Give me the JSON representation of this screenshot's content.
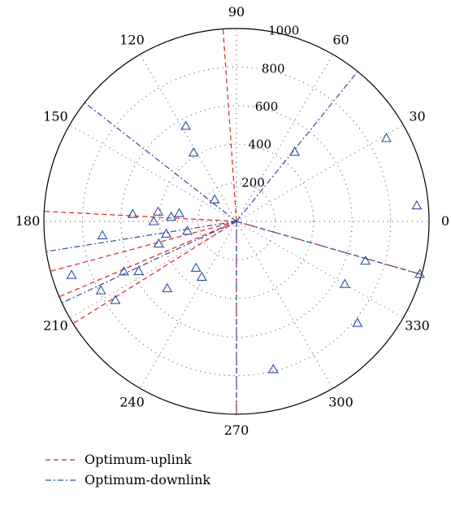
{
  "chart_data": {
    "type": "polar-scatter",
    "title": "",
    "angle_unit": "degrees",
    "r_max": 1000,
    "r_ticks": [
      200,
      400,
      600,
      800,
      1000
    ],
    "r_tick_labels": [
      "200",
      "400",
      "600",
      "800",
      "1000"
    ],
    "theta_ticks": [
      0,
      30,
      60,
      90,
      120,
      150,
      180,
      210,
      240,
      270,
      300,
      330
    ],
    "theta_tick_labels": [
      "0",
      "30",
      "60",
      "90",
      "120",
      "150",
      "180",
      "210",
      "240",
      "270",
      "300",
      "330"
    ],
    "grid": "dotted",
    "points": [
      {
        "theta": 5,
        "r": 940
      },
      {
        "theta": 29,
        "r": 890
      },
      {
        "theta": 50,
        "r": 470
      },
      {
        "theta": 118,
        "r": 560
      },
      {
        "theta": 122,
        "r": 420
      },
      {
        "theta": 135,
        "r": 160
      },
      {
        "theta": 173,
        "r": 410
      },
      {
        "theta": 176,
        "r": 540
      },
      {
        "theta": 172,
        "r": 300
      },
      {
        "theta": 180,
        "r": 430
      },
      {
        "theta": 176,
        "r": 340
      },
      {
        "theta": 186,
        "r": 700
      },
      {
        "theta": 190,
        "r": 370
      },
      {
        "theta": 198,
        "r": 900
      },
      {
        "theta": 207,
        "r": 790
      },
      {
        "theta": 213,
        "r": 750
      },
      {
        "theta": 207,
        "r": 570
      },
      {
        "theta": 204,
        "r": 640
      },
      {
        "theta": 196,
        "r": 420
      },
      {
        "theta": 191,
        "r": 260
      },
      {
        "theta": 229,
        "r": 320
      },
      {
        "theta": 238,
        "r": 340
      },
      {
        "theta": 224,
        "r": 500
      },
      {
        "theta": 284,
        "r": 790
      },
      {
        "theta": 320,
        "r": 820
      },
      {
        "theta": 330,
        "r": 650
      },
      {
        "theta": 343,
        "r": 700
      },
      {
        "theta": 344,
        "r": 990
      }
    ],
    "series": [
      {
        "name": "Optimum-uplink",
        "color": "#e02020",
        "style": "dashed",
        "angles": [
          94,
          177,
          195,
          203,
          212,
          270,
          344
        ]
      },
      {
        "name": "Optimum-downlink",
        "color": "#2a4fa0",
        "style": "dashdot",
        "angles": [
          51,
          142,
          189,
          205,
          270,
          344
        ]
      }
    ],
    "marker_color": "#2a4fa0",
    "legend_placement": "bottom-left"
  }
}
